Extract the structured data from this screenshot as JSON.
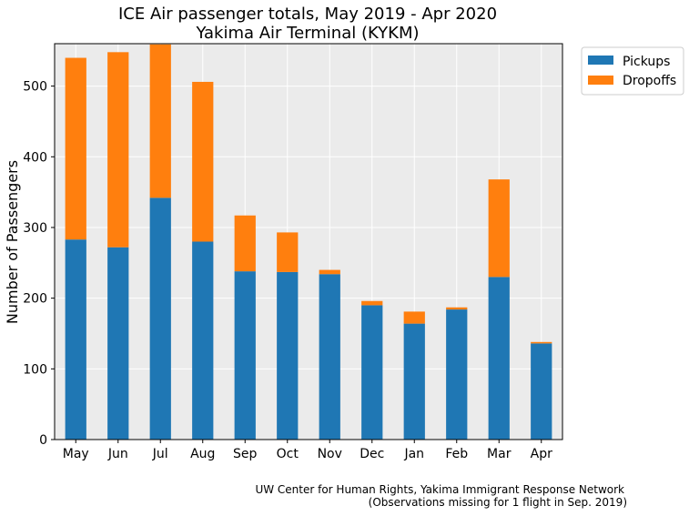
{
  "chart_data": {
    "type": "bar",
    "stacked": true,
    "title": "ICE Air passenger totals, May 2019 - Apr 2020",
    "subtitle": "Yakima Air Terminal (KYKM)",
    "xlabel": "",
    "ylabel": "Number of Passengers",
    "categories": [
      "May",
      "Jun",
      "Jul",
      "Aug",
      "Sep",
      "Oct",
      "Nov",
      "Dec",
      "Jan",
      "Feb",
      "Mar",
      "Apr"
    ],
    "series": [
      {
        "name": "Pickups",
        "color": "#1f77b4",
        "values": [
          283,
          272,
          342,
          280,
          238,
          237,
          234,
          190,
          164,
          184,
          230,
          136
        ]
      },
      {
        "name": "Dropoffs",
        "color": "#ff7f0e",
        "values": [
          257,
          276,
          217,
          226,
          79,
          56,
          6,
          6,
          17,
          3,
          138,
          2
        ]
      }
    ],
    "ylim": [
      0,
      560
    ],
    "yticks": [
      0,
      100,
      200,
      300,
      400,
      500
    ],
    "grid": true,
    "legend_position": "upper-right-outside",
    "caption_lines": [
      "UW Center for Human Rights, Yakima Immigrant Response Network",
      "(Observations missing for 1 flight in Sep. 2019)"
    ]
  }
}
